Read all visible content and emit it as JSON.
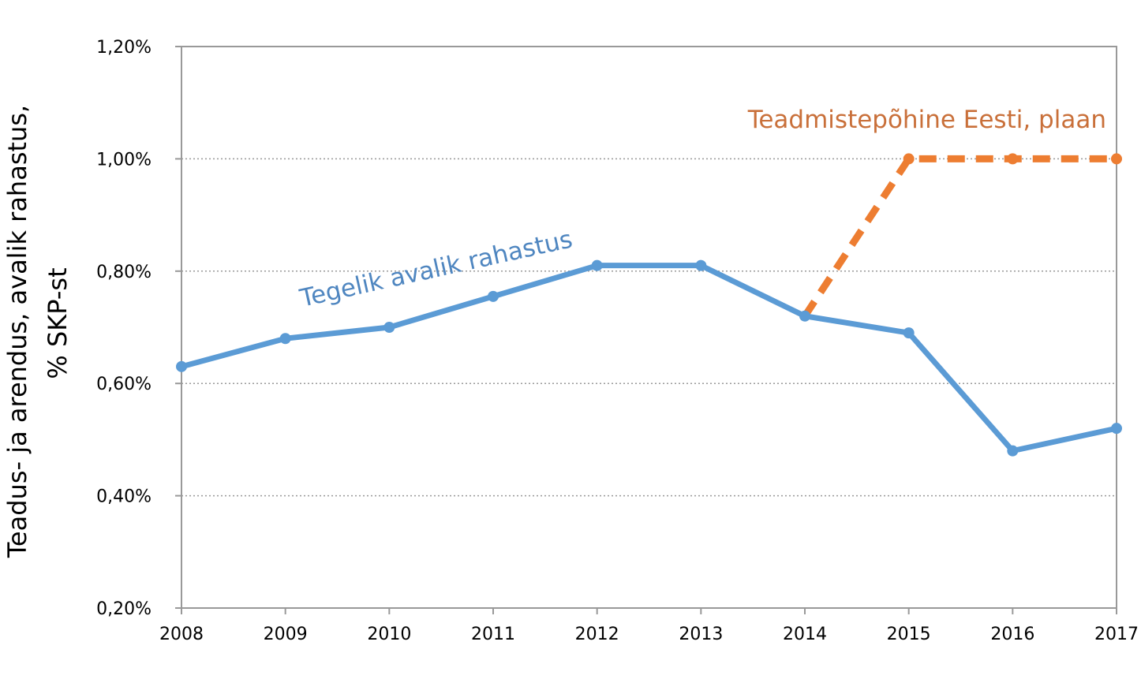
{
  "chart_data": {
    "type": "line",
    "title": "",
    "xlabel": "",
    "ylabel": [
      "Teadus- ja arendus, avalik rahastus,",
      "% SKP-st"
    ],
    "x": [
      "2008",
      "2009",
      "2010",
      "2011",
      "2012",
      "2013",
      "2014",
      "2015",
      "2016",
      "2017"
    ],
    "ylim": [
      0.2,
      1.2
    ],
    "yticks": [
      0.2,
      0.4,
      0.6,
      0.8,
      1.0,
      1.2
    ],
    "ytick_labels": [
      "0,20%",
      "0,40%",
      "0,60%",
      "0,80%",
      "1,00%",
      "1,20%"
    ],
    "grid": "horizontal-dotted",
    "series": [
      {
        "name": "Tegelik avalik rahastus",
        "color": "#5b9bd5",
        "style": "solid",
        "values": [
          0.63,
          0.68,
          0.7,
          0.755,
          0.81,
          0.81,
          0.72,
          0.69,
          0.48,
          0.52
        ]
      },
      {
        "name": "Teadmistepõhine Eesti, plaan",
        "color": "#ed7d31",
        "label_color": "#c9703a",
        "style": "dashed",
        "values": [
          null,
          null,
          null,
          null,
          null,
          null,
          0.72,
          1.0,
          1.0,
          1.0
        ]
      }
    ]
  }
}
